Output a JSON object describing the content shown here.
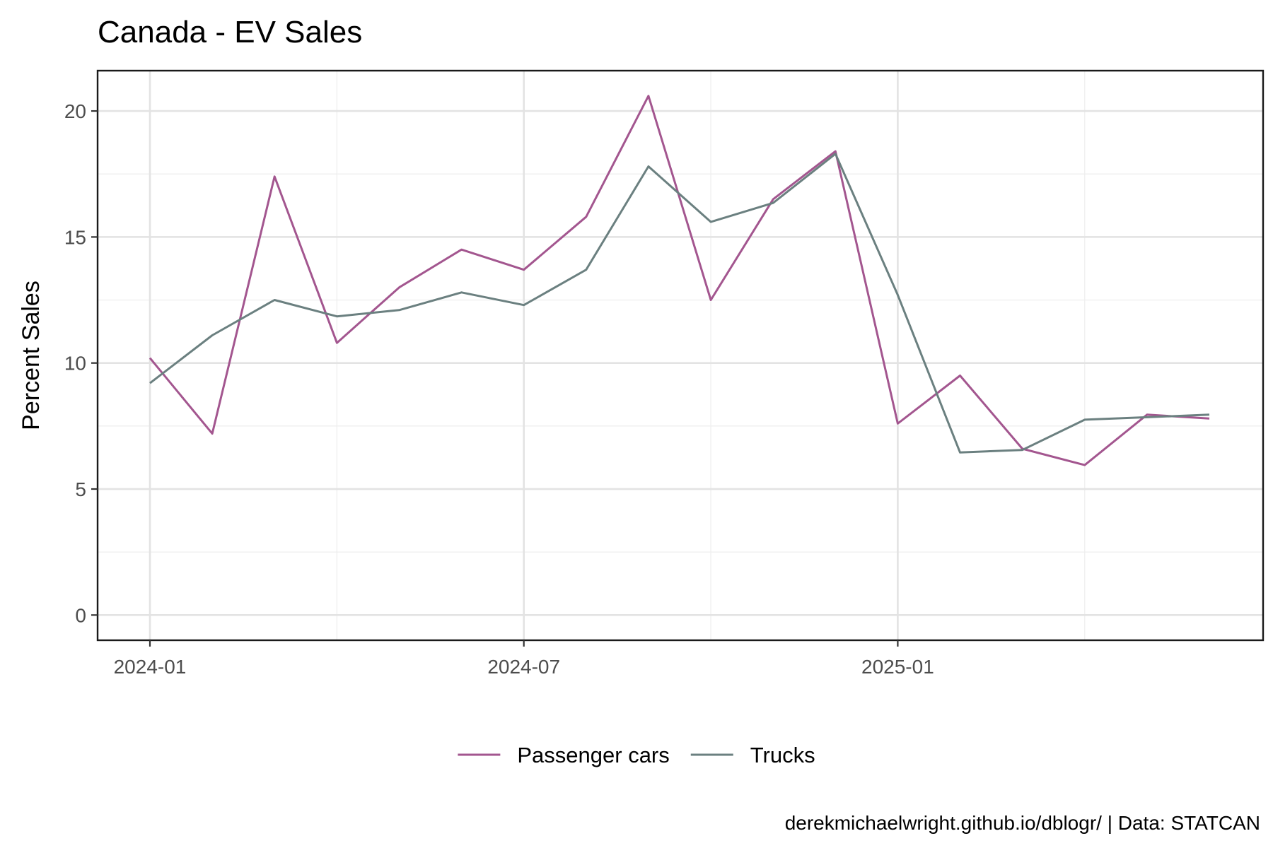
{
  "chart_data": {
    "type": "line",
    "title": "Canada - EV Sales",
    "xlabel": "",
    "ylabel": "Percent Sales",
    "x": [
      "2024-01",
      "2024-02",
      "2024-03",
      "2024-04",
      "2024-05",
      "2024-06",
      "2024-07",
      "2024-08",
      "2024-09",
      "2024-10",
      "2024-11",
      "2024-12",
      "2025-01",
      "2025-02",
      "2025-03",
      "2025-04",
      "2025-05",
      "2025-06"
    ],
    "x_ticks": [
      "2024-01",
      "2024-07",
      "2025-01"
    ],
    "y_ticks": [
      0,
      5,
      10,
      15,
      20
    ],
    "ylim": [
      -1,
      21.6
    ],
    "series": [
      {
        "name": "Passenger cars",
        "color": "#a3568f",
        "values": [
          10.2,
          7.2,
          17.4,
          10.8,
          13.0,
          14.5,
          13.7,
          15.8,
          20.6,
          12.5,
          16.5,
          18.4,
          7.6,
          9.5,
          6.6,
          5.95,
          7.95,
          7.8
        ]
      },
      {
        "name": "Trucks",
        "color": "#6b8080",
        "values": [
          9.2,
          11.1,
          12.5,
          11.85,
          12.1,
          12.8,
          12.3,
          13.7,
          17.8,
          15.6,
          16.35,
          18.3,
          12.7,
          6.45,
          6.55,
          7.75,
          7.85,
          7.95
        ]
      }
    ],
    "grid": true,
    "legend_position": "bottom",
    "caption": "derekmichaelwright.github.io/dblogr/ | Data: STATCAN"
  }
}
